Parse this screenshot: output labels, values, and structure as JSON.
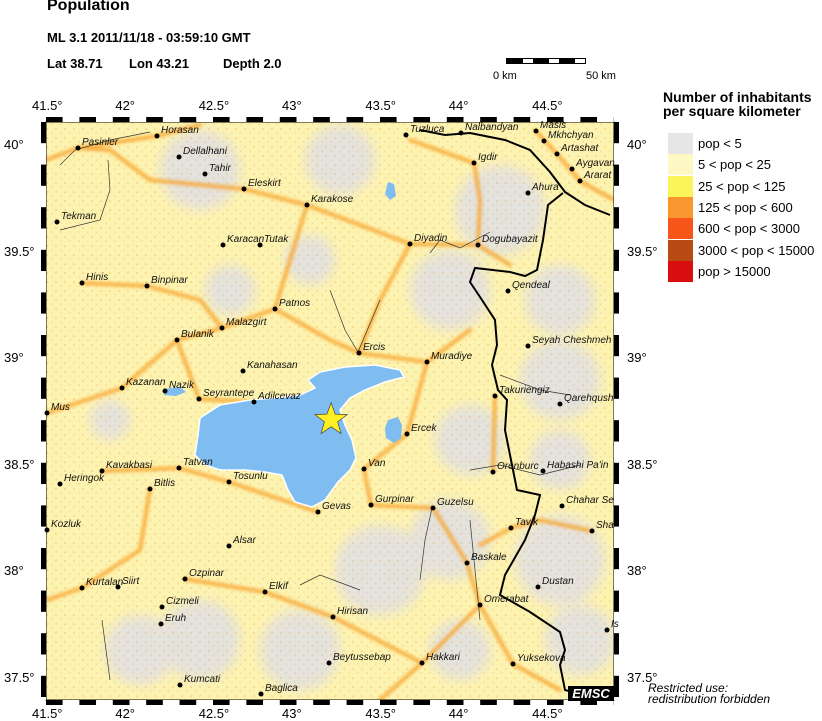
{
  "header": {
    "title": "Population",
    "event_line": "ML 3.1  2011/11/18 - 03:59:10 GMT",
    "lat_label": "Lat 38.71",
    "lon_label": "Lon  43.21",
    "depth_label": "Depth  2.0"
  },
  "event": {
    "magnitude": "ML 3.1",
    "lat": 38.71,
    "lon": 43.21,
    "depth": 2.0,
    "marker": "star-icon",
    "marker_color": "#ffee22"
  },
  "scale_bar": {
    "left_label": "0 km",
    "right_label": "50 km"
  },
  "axes": {
    "lon_ticks": [
      "41.5°",
      "42°",
      "42.5°",
      "43°",
      "43.5°",
      "44°",
      "44.5°"
    ],
    "lat_ticks": [
      "40°",
      "39.5°",
      "39°",
      "38.5°",
      "38°",
      "37.5°"
    ]
  },
  "legend": {
    "title_line1": "Number of inhabitants",
    "title_line2": "per square kilometer",
    "items": [
      {
        "label": "pop < 5",
        "color": "#e6e6e6"
      },
      {
        "label": "5 < pop < 25",
        "color": "#fdf8c4"
      },
      {
        "label": "25 < pop < 125",
        "color": "#fbf55c"
      },
      {
        "label": "125 < pop < 600",
        "color": "#f9962e"
      },
      {
        "label": "600 < pop < 3000",
        "color": "#f6561a"
      },
      {
        "label": "3000 < pop < 15000",
        "color": "#b84a14"
      },
      {
        "label": "pop > 15000",
        "color": "#d90e0e"
      }
    ]
  },
  "colors": {
    "water": "#7fbcf0",
    "border": "#000000"
  },
  "cities": [
    "Horasan",
    "Pasinler",
    "Dellalhani",
    "Tahir",
    "Eleskirt",
    "Karakose",
    "Tekman",
    "Karacan",
    "Tutak",
    "Hinis",
    "Binpinar",
    "Patnos",
    "Malazgirt",
    "Bulanik",
    "Ercis",
    "Kanahasan",
    "Kazanan",
    "Nazik",
    "Seyrantepe",
    "Adilcevaz",
    "Mus",
    "Tuzluca",
    "Nalbandyan",
    "Masis",
    "Mkhchyan",
    "Artashat",
    "Aygavan",
    "Ararat",
    "Igdir",
    "Ahura",
    "Diyadin",
    "Dogubayazit",
    "Qendeal",
    "Seyah Cheshmeh",
    "Muradiye",
    "Takuriengiz",
    "Qarehqush",
    "Ercek",
    "Van",
    "Kavakbasi",
    "Tatvan",
    "Heringok",
    "Bitlis",
    "Tosunlu",
    "Gevas",
    "Gurpinar",
    "Kozluk",
    "Alsar",
    "Ozpinar",
    "Kurtalan",
    "Siirt",
    "Elkif",
    "Cizmeli",
    "Eruh",
    "Hirisan",
    "Beytussebap",
    "Hakkari",
    "Kumcati",
    "Baglica",
    "Orenburc",
    "Habashi Pa'in",
    "Guzelsu",
    "Chahar Se",
    "Tavik",
    "Sha",
    "Baskale",
    "Dustan",
    "Omerabat",
    "Is",
    "Yuksekova"
  ],
  "watermark": "EMSC",
  "notice_line1": "Restricted use:",
  "notice_line2": "redistribution forbidden"
}
